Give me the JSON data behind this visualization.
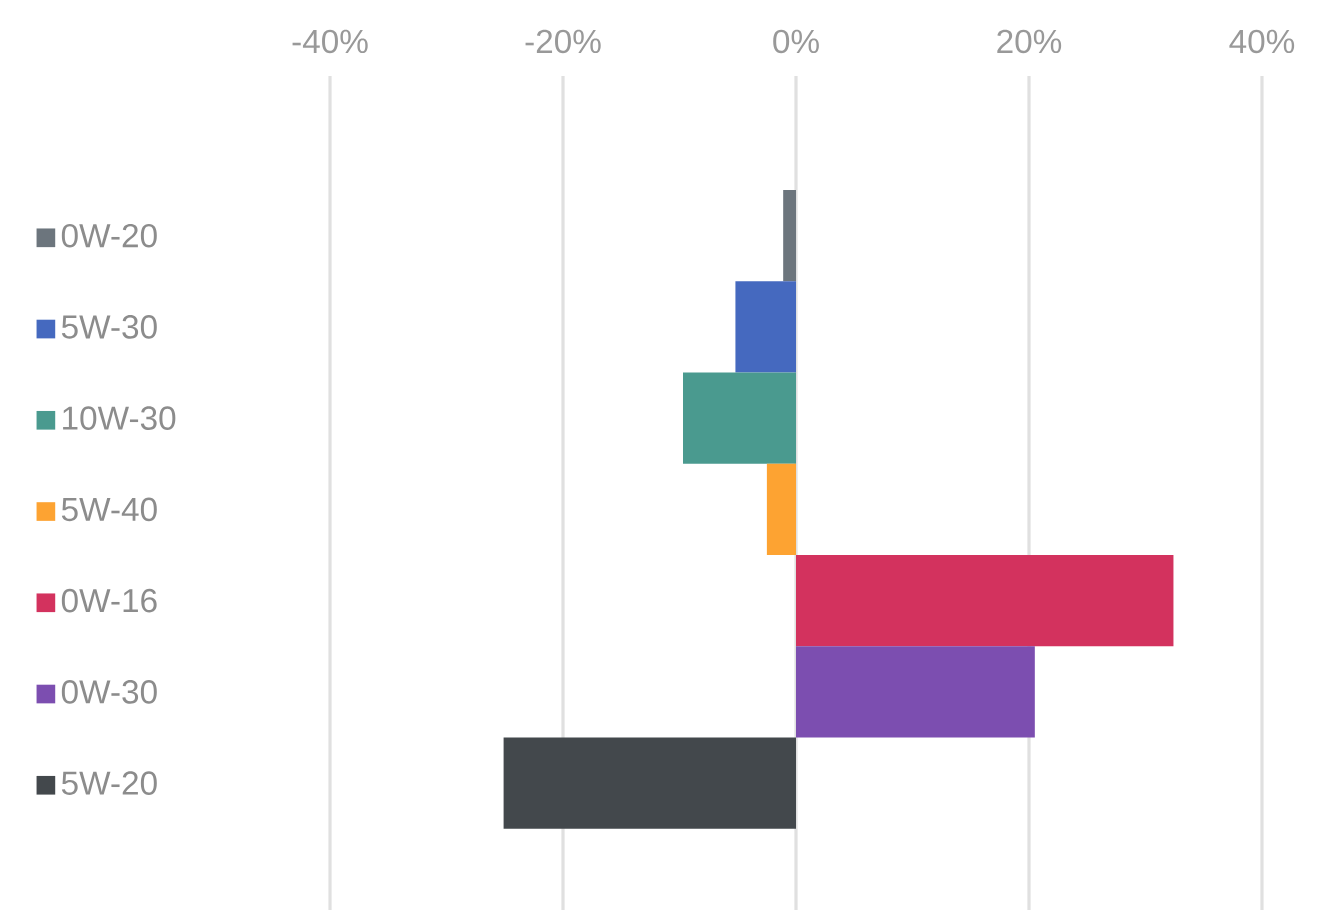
{
  "chart_data": {
    "type": "bar",
    "orientation": "horizontal",
    "categories": [
      null
    ],
    "series": [
      {
        "name": "0W-20",
        "color": "#6c757d",
        "values": [
          -1.1
        ]
      },
      {
        "name": "5W-30",
        "color": "#4569bf",
        "values": [
          -5.2
        ]
      },
      {
        "name": "10W-30",
        "color": "#4a9a8f",
        "values": [
          -9.7
        ]
      },
      {
        "name": "5W-40",
        "color": "#fda332",
        "values": [
          -2.5
        ]
      },
      {
        "name": "0W-16",
        "color": "#d3325e",
        "values": [
          32.4
        ]
      },
      {
        "name": "0W-30",
        "color": "#7c4eb0",
        "values": [
          20.5
        ]
      },
      {
        "name": "5W-20",
        "color": "#43484c",
        "values": [
          -25.1
        ]
      }
    ],
    "xlim": [
      -40,
      40
    ],
    "xticks": [
      {
        "value": -40,
        "label": "-40%"
      },
      {
        "value": -20,
        "label": "-20%"
      },
      {
        "value": 0,
        "label": "0%"
      },
      {
        "value": 20,
        "label": "20%"
      },
      {
        "value": 40,
        "label": "40%"
      }
    ],
    "grid": "x",
    "legend": "left"
  }
}
